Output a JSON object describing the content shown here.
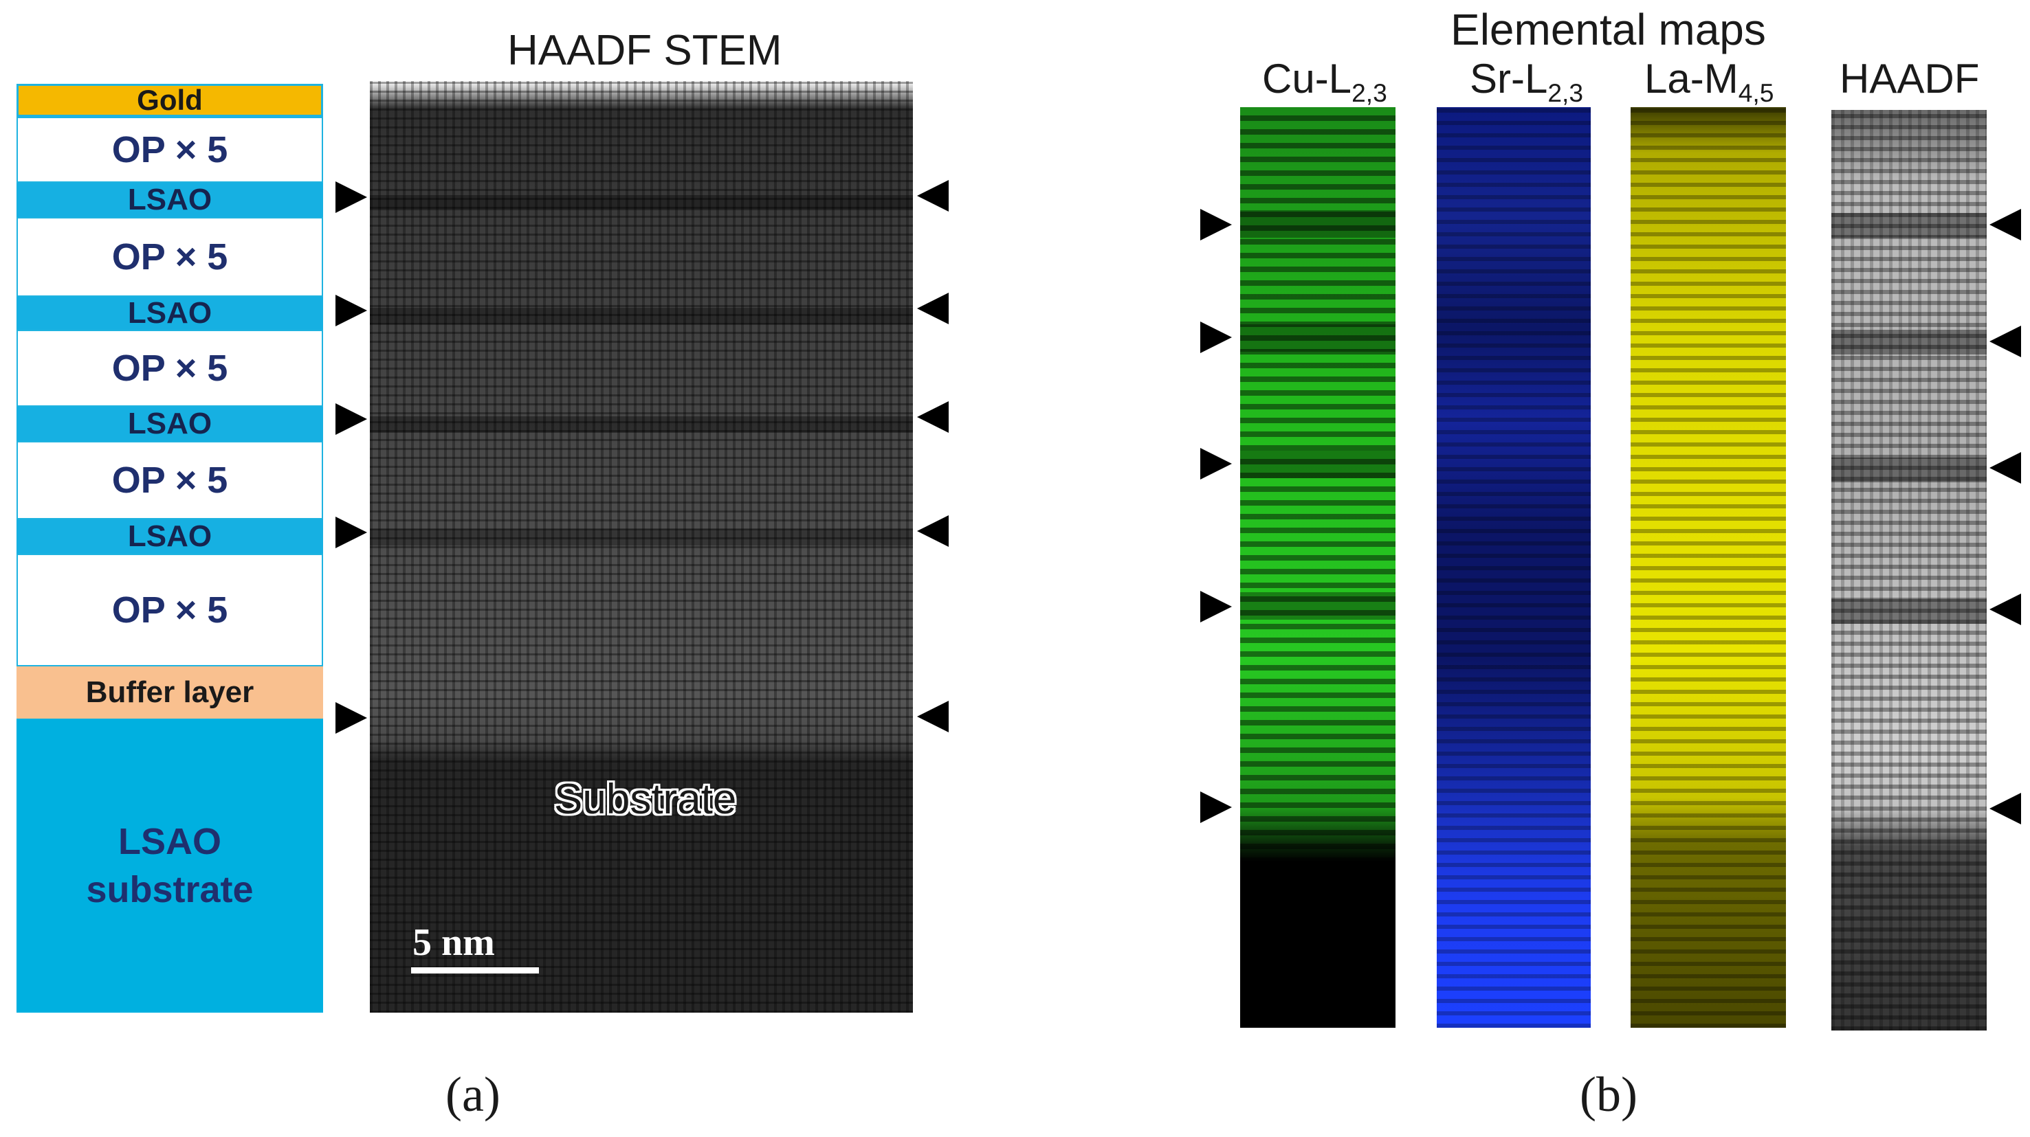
{
  "panel_a": {
    "stack": {
      "gold": "Gold",
      "op": "OP × 5",
      "lsao": "LSAO",
      "buffer": "Buffer layer",
      "substrate_line1": "LSAO",
      "substrate_line2": "substrate"
    },
    "image_title": "HAADF STEM",
    "substrate_label": "Substrate",
    "scale_bar": "5 nm",
    "caption": "(a)"
  },
  "panel_b": {
    "title": "Elemental maps",
    "maps": [
      {
        "label": "Cu-L",
        "sub": "2,3",
        "color": "#19c414"
      },
      {
        "label": "Sr-L",
        "sub": "2,3",
        "color": "#1230e0"
      },
      {
        "label": "La-M",
        "sub": "4,5",
        "color": "#d8d400"
      },
      {
        "label": "HAADF",
        "sub": "",
        "color": "#a8a8a8"
      }
    ],
    "caption": "(b)"
  }
}
